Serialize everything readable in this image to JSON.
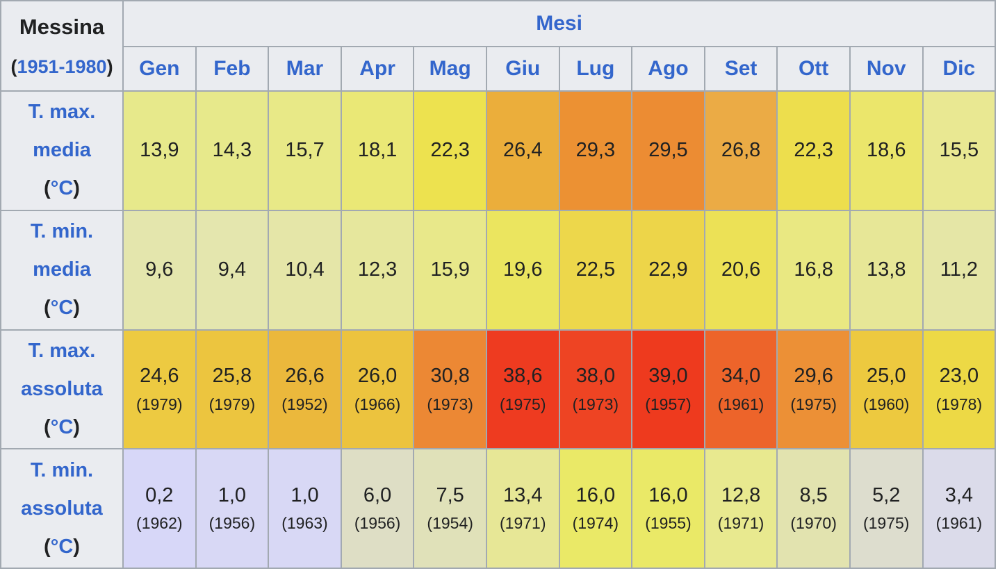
{
  "table": {
    "station": "Messina",
    "period_years": "1951-1980",
    "punct": {
      "open": "(",
      "close": ")"
    },
    "months_header": "Mesi",
    "months": [
      "Gen",
      "Feb",
      "Mar",
      "Apr",
      "Mag",
      "Giu",
      "Lug",
      "Ago",
      "Set",
      "Ott",
      "Nov",
      "Dic"
    ],
    "rows": [
      {
        "label_lines": [
          "T. max.",
          "media"
        ],
        "unit": "°C",
        "cells": [
          {
            "v": "13,9",
            "bg": "#e7e98b"
          },
          {
            "v": "14,3",
            "bg": "#e7e98b"
          },
          {
            "v": "15,7",
            "bg": "#e8e987"
          },
          {
            "v": "18,1",
            "bg": "#eae876"
          },
          {
            "v": "22,3",
            "bg": "#ede24f"
          },
          {
            "v": "26,4",
            "bg": "#ebae3b"
          },
          {
            "v": "29,3",
            "bg": "#ec9133"
          },
          {
            "v": "29,5",
            "bg": "#ec8c33"
          },
          {
            "v": "26,8",
            "bg": "#ebab45"
          },
          {
            "v": "22,3",
            "bg": "#edde4d"
          },
          {
            "v": "18,6",
            "bg": "#ebe66b"
          },
          {
            "v": "15,5",
            "bg": "#e9e892"
          }
        ]
      },
      {
        "label_lines": [
          "T. min.",
          "media"
        ],
        "unit": "°C",
        "cells": [
          {
            "v": "9,6",
            "bg": "#e4e6ad"
          },
          {
            "v": "9,4",
            "bg": "#e4e6ae"
          },
          {
            "v": "10,4",
            "bg": "#e5e6a8"
          },
          {
            "v": "12,3",
            "bg": "#e6e79d"
          },
          {
            "v": "15,9",
            "bg": "#e8e88a"
          },
          {
            "v": "19,6",
            "bg": "#ebe55f"
          },
          {
            "v": "22,5",
            "bg": "#edd74b"
          },
          {
            "v": "22,9",
            "bg": "#edd549"
          },
          {
            "v": "20,6",
            "bg": "#ece156"
          },
          {
            "v": "16,8",
            "bg": "#e9e882"
          },
          {
            "v": "13,8",
            "bg": "#e7e797"
          },
          {
            "v": "11,2",
            "bg": "#e5e6a6"
          }
        ]
      },
      {
        "label_lines": [
          "T. max.",
          "assoluta"
        ],
        "unit": "°C",
        "cells": [
          {
            "v": "24,6",
            "y": "(1979)",
            "bg": "#edca41"
          },
          {
            "v": "25,8",
            "y": "(1979)",
            "bg": "#ecc53f"
          },
          {
            "v": "26,6",
            "y": "(1952)",
            "bg": "#ebb83c"
          },
          {
            "v": "26,0",
            "y": "(1966)",
            "bg": "#ecc33e"
          },
          {
            "v": "30,8",
            "y": "(1973)",
            "bg": "#ec8834"
          },
          {
            "v": "38,6",
            "y": "(1975)",
            "bg": "#ee3b20"
          },
          {
            "v": "38,0",
            "y": "(1973)",
            "bg": "#ee4423"
          },
          {
            "v": "39,0",
            "y": "(1957)",
            "bg": "#ee3a1e"
          },
          {
            "v": "34,0",
            "y": "(1961)",
            "bg": "#ed642a"
          },
          {
            "v": "29,6",
            "y": "(1975)",
            "bg": "#ec9036"
          },
          {
            "v": "25,0",
            "y": "(1960)",
            "bg": "#edc93f"
          },
          {
            "v": "23,0",
            "y": "(1978)",
            "bg": "#edd945"
          }
        ]
      },
      {
        "label_lines": [
          "T. min.",
          "assoluta"
        ],
        "unit": "°C",
        "cells": [
          {
            "v": "0,2",
            "y": "(1962)",
            "bg": "#d7d7f8"
          },
          {
            "v": "1,0",
            "y": "(1956)",
            "bg": "#d8d8f5"
          },
          {
            "v": "1,0",
            "y": "(1963)",
            "bg": "#d8d8f5"
          },
          {
            "v": "6,0",
            "y": "(1956)",
            "bg": "#dedec5"
          },
          {
            "v": "7,5",
            "y": "(1954)",
            "bg": "#e0e1b9"
          },
          {
            "v": "13,4",
            "y": "(1971)",
            "bg": "#e7e796"
          },
          {
            "v": "16,0",
            "y": "(1974)",
            "bg": "#eae967"
          },
          {
            "v": "16,0",
            "y": "(1955)",
            "bg": "#eae967"
          },
          {
            "v": "12,8",
            "y": "(1971)",
            "bg": "#e8e98f"
          },
          {
            "v": "8,5",
            "y": "(1970)",
            "bg": "#e2e3af"
          },
          {
            "v": "5,2",
            "y": "(1975)",
            "bg": "#dddDce"
          },
          {
            "v": "3,4",
            "y": "(1961)",
            "bg": "#dbdbea"
          }
        ]
      }
    ]
  },
  "colors": {
    "header_bg": "#eaecf0",
    "border": "#a2a9b1",
    "link_blue": "#3366cc",
    "text": "#202122"
  },
  "chart_data": {
    "type": "table",
    "title": "Messina (1951-1980)",
    "columns": [
      "Gen",
      "Feb",
      "Mar",
      "Apr",
      "Mag",
      "Giu",
      "Lug",
      "Ago",
      "Set",
      "Ott",
      "Nov",
      "Dic"
    ],
    "series": [
      {
        "name": "T. max. media (°C)",
        "values": [
          13.9,
          14.3,
          15.7,
          18.1,
          22.3,
          26.4,
          29.3,
          29.5,
          26.8,
          22.3,
          18.6,
          15.5
        ]
      },
      {
        "name": "T. min. media (°C)",
        "values": [
          9.6,
          9.4,
          10.4,
          12.3,
          15.9,
          19.6,
          22.5,
          22.9,
          20.6,
          16.8,
          13.8,
          11.2
        ]
      },
      {
        "name": "T. max. assoluta (°C)",
        "values": [
          24.6,
          25.8,
          26.6,
          26.0,
          30.8,
          38.6,
          38.0,
          39.0,
          34.0,
          29.6,
          25.0,
          23.0
        ],
        "years": [
          1979,
          1979,
          1952,
          1966,
          1973,
          1975,
          1973,
          1957,
          1961,
          1975,
          1960,
          1978
        ]
      },
      {
        "name": "T. min. assoluta (°C)",
        "values": [
          0.2,
          1.0,
          1.0,
          6.0,
          7.5,
          13.4,
          16.0,
          16.0,
          12.8,
          8.5,
          5.2,
          3.4
        ],
        "years": [
          1962,
          1956,
          1963,
          1956,
          1954,
          1971,
          1974,
          1955,
          1971,
          1970,
          1975,
          1961
        ]
      }
    ]
  }
}
